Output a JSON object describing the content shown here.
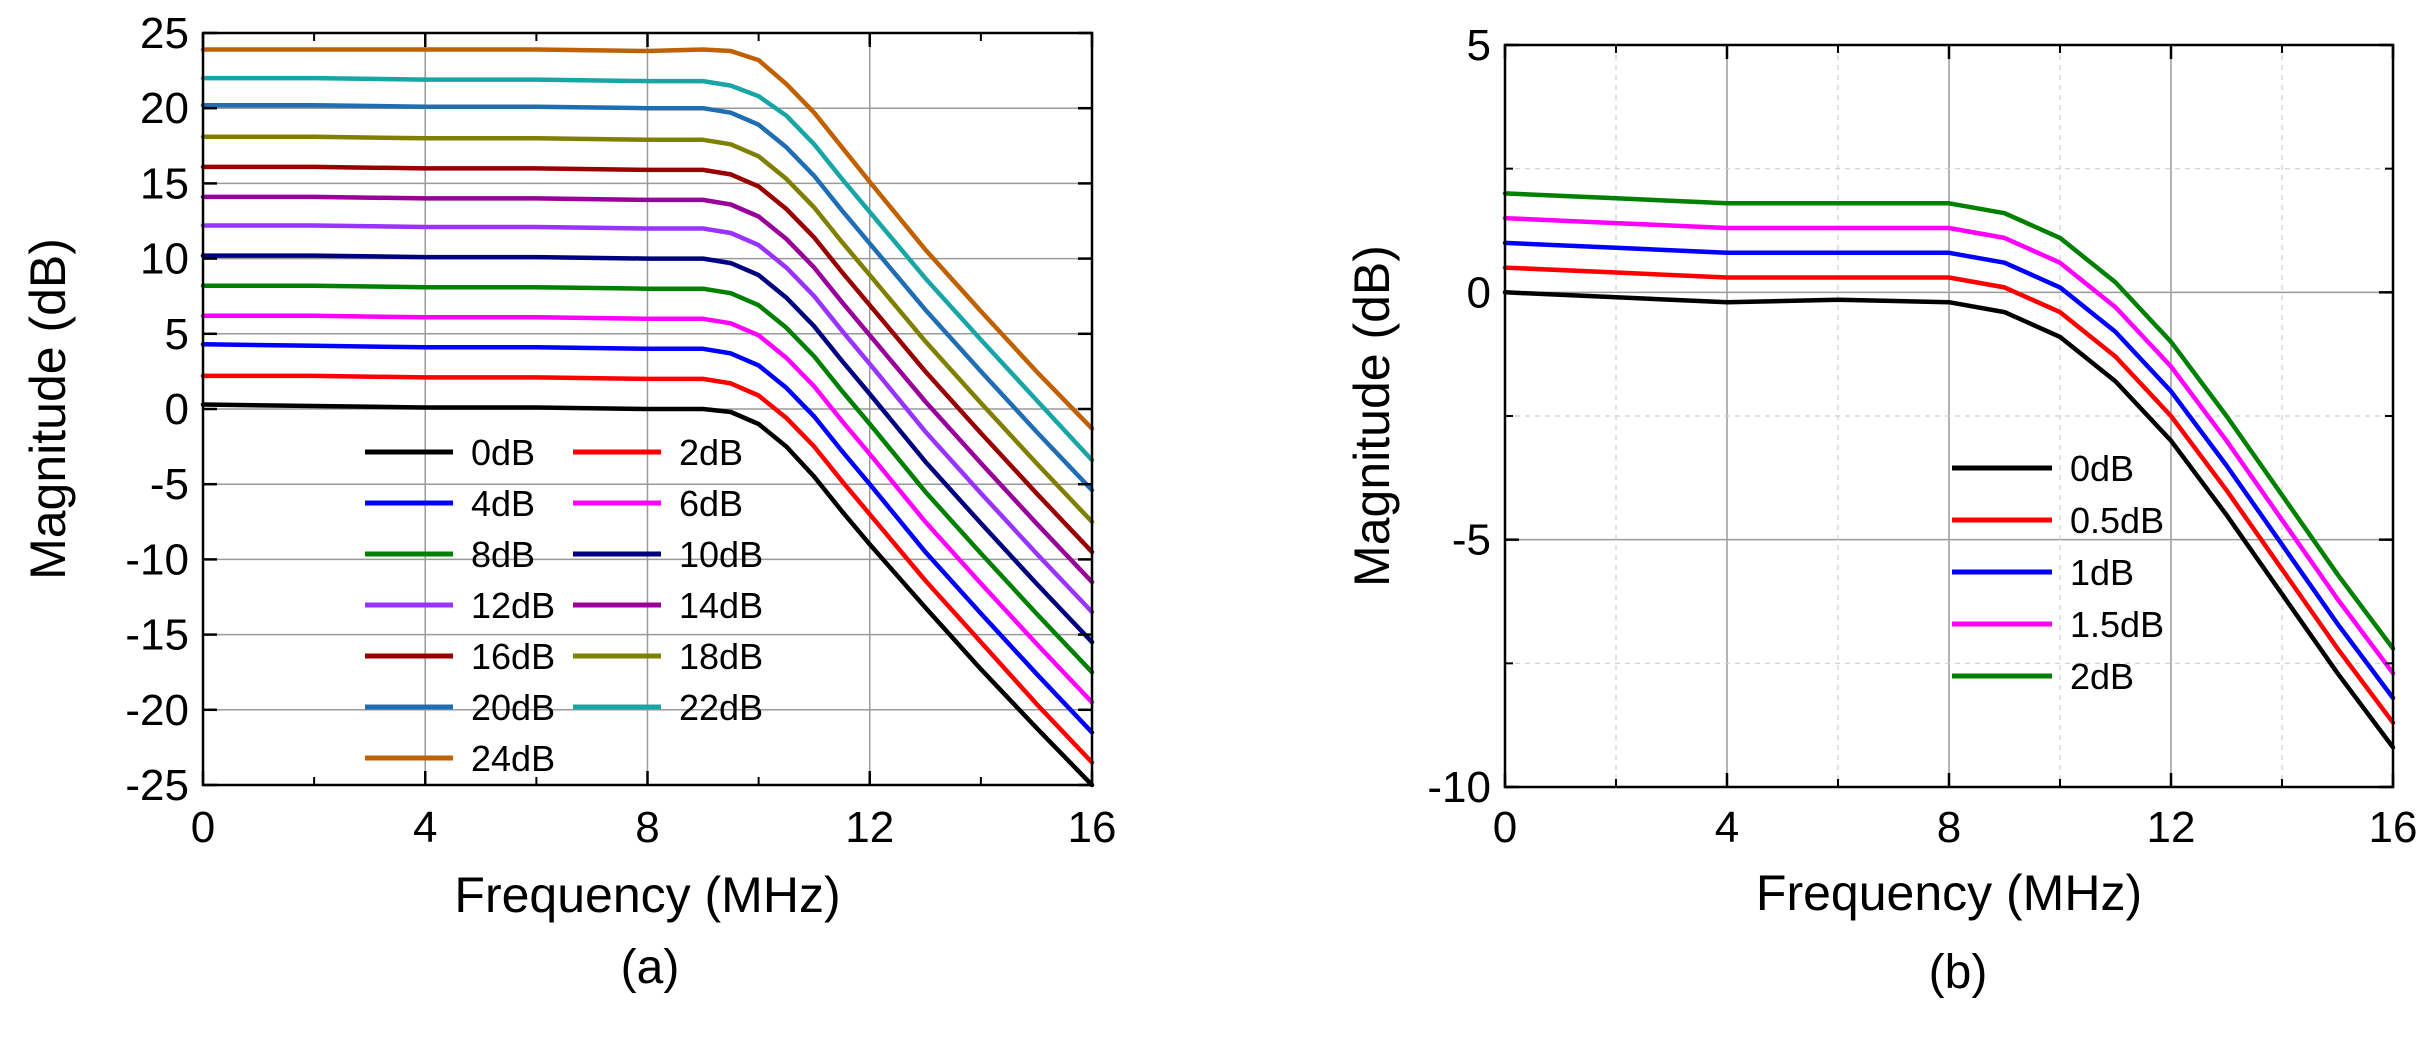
{
  "chart_data": [
    {
      "type": "line",
      "panel_label": "(a)",
      "xlabel": "Frequency (MHz)",
      "ylabel": "Magnitude (dB)",
      "xlim": [
        0,
        16
      ],
      "ylim": [
        -25,
        25
      ],
      "xticks": [
        0,
        4,
        8,
        12,
        16
      ],
      "yticks": [
        25,
        20,
        15,
        10,
        5,
        0,
        -5,
        -10,
        -15,
        -20,
        -25
      ],
      "grid": true,
      "legend_position": "lower-center",
      "legend_columns": 2,
      "x": [
        0,
        2,
        4,
        6,
        8,
        9,
        9.5,
        10,
        10.5,
        11,
        11.5,
        12,
        13,
        14,
        15,
        16
      ],
      "series": [
        {
          "name": "0dB",
          "color": "#000000",
          "values": [
            0.3,
            0.2,
            0.1,
            0.1,
            0.0,
            0.0,
            -0.2,
            -1.0,
            -2.5,
            -4.5,
            -6.8,
            -9.0,
            -13.2,
            -17.3,
            -21.2,
            -25.0
          ]
        },
        {
          "name": "2dB",
          "color": "#ff0000",
          "values": [
            2.2,
            2.2,
            2.1,
            2.1,
            2.0,
            2.0,
            1.7,
            0.9,
            -0.6,
            -2.5,
            -4.8,
            -7.0,
            -11.4,
            -15.5,
            -19.6,
            -23.5
          ]
        },
        {
          "name": "4dB",
          "color": "#0000ff",
          "values": [
            4.3,
            4.2,
            4.1,
            4.1,
            4.0,
            4.0,
            3.7,
            2.9,
            1.4,
            -0.5,
            -2.8,
            -5.0,
            -9.5,
            -13.6,
            -17.6,
            -21.5
          ]
        },
        {
          "name": "6dB",
          "color": "#ff00ff",
          "values": [
            6.2,
            6.2,
            6.1,
            6.1,
            6.0,
            6.0,
            5.7,
            4.9,
            3.4,
            1.5,
            -0.8,
            -3.0,
            -7.5,
            -11.6,
            -15.6,
            -19.5
          ]
        },
        {
          "name": "8dB",
          "color": "#008000",
          "values": [
            8.2,
            8.2,
            8.1,
            8.1,
            8.0,
            8.0,
            7.7,
            6.9,
            5.4,
            3.5,
            1.2,
            -1.0,
            -5.5,
            -9.6,
            -13.6,
            -17.5
          ]
        },
        {
          "name": "10dB",
          "color": "#000080",
          "values": [
            10.2,
            10.2,
            10.1,
            10.1,
            10.0,
            10.0,
            9.7,
            8.9,
            7.4,
            5.5,
            3.2,
            1.0,
            -3.5,
            -7.6,
            -11.6,
            -15.5
          ]
        },
        {
          "name": "12dB",
          "color": "#9933ff",
          "values": [
            12.2,
            12.2,
            12.1,
            12.1,
            12.0,
            12.0,
            11.7,
            10.9,
            9.4,
            7.5,
            5.2,
            3.0,
            -1.5,
            -5.6,
            -9.6,
            -13.5
          ]
        },
        {
          "name": "14dB",
          "color": "#990099",
          "values": [
            14.1,
            14.1,
            14.0,
            14.0,
            13.9,
            13.9,
            13.6,
            12.8,
            11.3,
            9.4,
            7.1,
            4.9,
            0.5,
            -3.6,
            -7.6,
            -11.5
          ]
        },
        {
          "name": "16dB",
          "color": "#990000",
          "values": [
            16.1,
            16.1,
            16.0,
            16.0,
            15.9,
            15.9,
            15.6,
            14.8,
            13.3,
            11.4,
            9.1,
            6.9,
            2.5,
            -1.6,
            -5.6,
            -9.5
          ]
        },
        {
          "name": "18dB",
          "color": "#808000",
          "values": [
            18.1,
            18.1,
            18.0,
            18.0,
            17.9,
            17.9,
            17.6,
            16.8,
            15.3,
            13.4,
            11.1,
            8.9,
            4.5,
            0.4,
            -3.6,
            -7.5
          ]
        },
        {
          "name": "20dB",
          "color": "#1f6eb4",
          "values": [
            20.2,
            20.2,
            20.1,
            20.1,
            20.0,
            20.0,
            19.7,
            18.9,
            17.4,
            15.5,
            13.2,
            11.0,
            6.6,
            2.5,
            -1.5,
            -5.4
          ]
        },
        {
          "name": "22dB",
          "color": "#18a5a5",
          "values": [
            22.0,
            22.0,
            21.9,
            21.9,
            21.8,
            21.8,
            21.5,
            20.8,
            19.5,
            17.6,
            15.3,
            13.1,
            8.7,
            4.6,
            0.6,
            -3.4
          ]
        },
        {
          "name": "24dB",
          "color": "#c06000",
          "values": [
            23.9,
            23.9,
            23.9,
            23.9,
            23.8,
            23.9,
            23.8,
            23.2,
            21.6,
            19.7,
            17.4,
            15.1,
            10.6,
            6.5,
            2.5,
            -1.3
          ]
        }
      ]
    },
    {
      "type": "line",
      "panel_label": "(b)",
      "xlabel": "Frequency (MHz)",
      "ylabel": "Magnitude (dB)",
      "xlim": [
        0,
        16
      ],
      "ylim": [
        -10,
        5
      ],
      "xticks": [
        0,
        4,
        8,
        12,
        16
      ],
      "yticks": [
        5,
        0,
        -5,
        -10
      ],
      "grid": true,
      "legend_position": "center",
      "legend_columns": 1,
      "x": [
        0,
        2,
        4,
        6,
        8,
        9,
        10,
        11,
        12,
        13,
        14,
        15,
        16
      ],
      "series": [
        {
          "name": "0dB",
          "color": "#000000",
          "values": [
            0.0,
            -0.1,
            -0.2,
            -0.15,
            -0.2,
            -0.4,
            -0.9,
            -1.8,
            -3.0,
            -4.5,
            -6.1,
            -7.7,
            -9.2
          ]
        },
        {
          "name": "0.5dB",
          "color": "#ff0000",
          "values": [
            0.5,
            0.4,
            0.3,
            0.3,
            0.3,
            0.1,
            -0.4,
            -1.3,
            -2.5,
            -4.0,
            -5.6,
            -7.2,
            -8.7
          ]
        },
        {
          "name": "1dB",
          "color": "#0000ff",
          "values": [
            1.0,
            0.9,
            0.8,
            0.8,
            0.8,
            0.6,
            0.1,
            -0.8,
            -2.0,
            -3.5,
            -5.1,
            -6.7,
            -8.2
          ]
        },
        {
          "name": "1.5dB",
          "color": "#ff00ff",
          "values": [
            1.5,
            1.4,
            1.3,
            1.3,
            1.3,
            1.1,
            0.6,
            -0.3,
            -1.5,
            -3.0,
            -4.6,
            -6.2,
            -7.7
          ]
        },
        {
          "name": "2dB",
          "color": "#008000",
          "values": [
            2.0,
            1.9,
            1.8,
            1.8,
            1.8,
            1.6,
            1.1,
            0.2,
            -1.0,
            -2.5,
            -4.1,
            -5.7,
            -7.2
          ]
        }
      ]
    }
  ]
}
